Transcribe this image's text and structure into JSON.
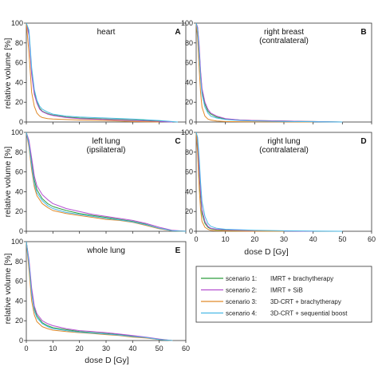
{
  "chart_data": {
    "type": "line",
    "ylabel": "relative volume [%]",
    "xlabel": "dose D [Gy]",
    "xlim": [
      0,
      60
    ],
    "ylim": [
      0,
      100
    ],
    "xticks": [
      0,
      10,
      20,
      30,
      40,
      50,
      60
    ],
    "yticks": [
      0,
      20,
      40,
      60,
      80,
      100
    ],
    "legend": {
      "placement": "inside-bottom-right",
      "entries": [
        {
          "scenario": "scenario 1:",
          "label": "IMRT + brachytherapy",
          "color": "#2e9e3e"
        },
        {
          "scenario": "scenario 2:",
          "label": "IMRT + SiB",
          "color": "#b44fd0"
        },
        {
          "scenario": "scenario 3:",
          "label": "3D-CRT + brachytherapy",
          "color": "#e08a2a"
        },
        {
          "scenario": "scenario 4:",
          "label": "3D-CRT + sequential boost",
          "color": "#49b9e6"
        }
      ]
    },
    "panels": [
      {
        "id": "heart",
        "letter": "A",
        "title_lines": [
          "heart"
        ],
        "series": [
          {
            "name": "scenario 1",
            "x": [
              0,
              1,
              2,
              3,
              4,
              5,
              6,
              8,
              10,
              15,
              20,
              30,
              40,
              50,
              55
            ],
            "y": [
              100,
              90,
              50,
              30,
              20,
              14,
              11,
              8.5,
              7,
              5,
              4,
              3,
              2,
              1,
              0
            ]
          },
          {
            "name": "scenario 2",
            "x": [
              0,
              1,
              2,
              3,
              4,
              5,
              6,
              8,
              10,
              15,
              20,
              30,
              40,
              50,
              55
            ],
            "y": [
              100,
              88,
              48,
              28,
              19,
              13,
              10.5,
              8,
              6.5,
              4.5,
              3.5,
              2.5,
              1.5,
              0.5,
              0
            ]
          },
          {
            "name": "scenario 3",
            "x": [
              0,
              1,
              2,
              3,
              4,
              5,
              6,
              8,
              10,
              15,
              20,
              30,
              40,
              50
            ],
            "y": [
              100,
              70,
              30,
              16,
              9,
              6,
              4.5,
              3.5,
              3,
              2.5,
              2,
              1.5,
              0.5,
              0
            ]
          },
          {
            "name": "scenario 4",
            "x": [
              0,
              1,
              2,
              3,
              4,
              5,
              6,
              8,
              10,
              15,
              20,
              30,
              40,
              50,
              57
            ],
            "y": [
              100,
              93,
              55,
              33,
              22,
              16,
              13,
              10,
              8,
              6,
              5,
              4,
              3,
              1.5,
              0
            ]
          }
        ]
      },
      {
        "id": "right-breast",
        "letter": "B",
        "title_lines": [
          "right breast",
          "(contralateral)"
        ],
        "series": [
          {
            "name": "scenario 1",
            "x": [
              0,
              0.5,
              1,
              1.5,
              2,
              3,
              4,
              5,
              7,
              10,
              15,
              20,
              30,
              40,
              50
            ],
            "y": [
              100,
              95,
              75,
              50,
              32,
              18,
              11,
              8,
              5,
              3,
              2,
              1.5,
              1,
              0.5,
              0
            ]
          },
          {
            "name": "scenario 2",
            "x": [
              0,
              0.5,
              1,
              1.5,
              2,
              3,
              4,
              5,
              7,
              10,
              15,
              20,
              30,
              40,
              50
            ],
            "y": [
              100,
              96,
              78,
              52,
              34,
              20,
              13,
              9,
              6,
              3.5,
              2,
              1.5,
              1,
              0.5,
              0
            ]
          },
          {
            "name": "scenario 3",
            "x": [
              0,
              0.5,
              1,
              1.5,
              2,
              3,
              4,
              5,
              7,
              10,
              15,
              20,
              30,
              40
            ],
            "y": [
              100,
              85,
              55,
              30,
              15,
              6,
              3,
              2,
              1,
              0.5,
              0.3,
              0.2,
              0.1,
              0
            ]
          },
          {
            "name": "scenario 4",
            "x": [
              0,
              0.5,
              1,
              1.5,
              2,
              3,
              4,
              5,
              7,
              10,
              15,
              20,
              30,
              40,
              50
            ],
            "y": [
              100,
              93,
              70,
              45,
              28,
              15,
              9,
              6,
              4,
              2.5,
              1.5,
              1,
              0.5,
              0.3,
              0
            ]
          }
        ]
      },
      {
        "id": "left-lung",
        "letter": "C",
        "title_lines": [
          "left lung",
          "(ipsilateral)"
        ],
        "series": [
          {
            "name": "scenario 1",
            "x": [
              0,
              1,
              2,
              3,
              4,
              6,
              8,
              10,
              15,
              20,
              25,
              30,
              35,
              40,
              45,
              50,
              55,
              60
            ],
            "y": [
              100,
              90,
              70,
              52,
              42,
              33,
              28,
              25,
              21,
              18,
              16,
              14,
              12,
              10,
              7,
              3,
              0.5,
              0
            ]
          },
          {
            "name": "scenario 2",
            "x": [
              0,
              1,
              2,
              3,
              4,
              6,
              8,
              10,
              15,
              20,
              25,
              30,
              35,
              40,
              45,
              50,
              55,
              60
            ],
            "y": [
              100,
              92,
              74,
              56,
              46,
              37,
              32,
              28,
              23,
              20,
              17,
              15,
              13,
              11,
              8,
              4,
              1,
              0
            ]
          },
          {
            "name": "scenario 3",
            "x": [
              0,
              1,
              2,
              3,
              4,
              6,
              8,
              10,
              15,
              20,
              25,
              30,
              35,
              40,
              45,
              50,
              55,
              60
            ],
            "y": [
              100,
              85,
              62,
              45,
              36,
              28,
              24,
              21,
              18,
              16,
              14,
              12,
              11,
              9,
              6,
              2.5,
              0.5,
              0
            ]
          },
          {
            "name": "scenario 4",
            "x": [
              0,
              1,
              2,
              3,
              4,
              6,
              8,
              10,
              15,
              20,
              25,
              30,
              35,
              40,
              45,
              50,
              55,
              60
            ],
            "y": [
              100,
              88,
              66,
              48,
              39,
              31,
              26,
              23,
              19,
              17,
              15,
              13,
              11.5,
              9.5,
              6.5,
              3,
              0.5,
              0
            ]
          }
        ]
      },
      {
        "id": "right-lung",
        "letter": "D",
        "title_lines": [
          "right lung",
          "(contralateral)"
        ],
        "series": [
          {
            "name": "scenario 1",
            "x": [
              0,
              0.5,
              1,
              1.5,
              2,
              3,
              4,
              5,
              7,
              10,
              15,
              20,
              30,
              40
            ],
            "y": [
              100,
              90,
              60,
              35,
              18,
              8,
              4,
              2.5,
              1.5,
              1,
              0.5,
              0.3,
              0.1,
              0
            ]
          },
          {
            "name": "scenario 2",
            "x": [
              0,
              0.5,
              1,
              1.5,
              2,
              3,
              4,
              5,
              7,
              10,
              15,
              20,
              30,
              40
            ],
            "y": [
              100,
              92,
              65,
              40,
              22,
              10,
              5,
              3,
              2,
              1.5,
              1,
              0.5,
              0.2,
              0
            ]
          },
          {
            "name": "scenario 3",
            "x": [
              0,
              0.5,
              1,
              1.5,
              2,
              3,
              4,
              5,
              7,
              10,
              15,
              20,
              30
            ],
            "y": [
              100,
              80,
              45,
              22,
              10,
              4,
              2,
              1,
              0.5,
              0.3,
              0.2,
              0.1,
              0
            ]
          },
          {
            "name": "scenario 4",
            "x": [
              0,
              0.5,
              1,
              1.5,
              2,
              3,
              4,
              5,
              7,
              10,
              15,
              20,
              30,
              40,
              50
            ],
            "y": [
              100,
              95,
              75,
              50,
              30,
              15,
              8,
              5,
              3,
              2,
              1.5,
              1,
              0.5,
              0.2,
              0
            ]
          }
        ]
      },
      {
        "id": "whole-lung",
        "letter": "E",
        "title_lines": [
          "whole lung"
        ],
        "series": [
          {
            "name": "scenario 1",
            "x": [
              0,
              1,
              2,
              3,
              4,
              6,
              8,
              10,
              15,
              20,
              25,
              30,
              35,
              40,
              45,
              50,
              55
            ],
            "y": [
              100,
              80,
              50,
              33,
              25,
              18,
              15,
              13,
              11,
              9,
              8,
              7,
              6,
              4.5,
              3,
              1,
              0
            ]
          },
          {
            "name": "scenario 2",
            "x": [
              0,
              1,
              2,
              3,
              4,
              6,
              8,
              10,
              15,
              20,
              25,
              30,
              35,
              40,
              45,
              50,
              55
            ],
            "y": [
              100,
              82,
              53,
              35,
              27,
              20,
              17,
              15,
              12,
              10,
              9,
              8,
              6.5,
              5,
              3.5,
              1.5,
              0
            ]
          },
          {
            "name": "scenario 3",
            "x": [
              0,
              1,
              2,
              3,
              4,
              6,
              8,
              10,
              15,
              20,
              25,
              30,
              35,
              40,
              45,
              50,
              55
            ],
            "y": [
              100,
              72,
              40,
              26,
              19,
              14,
              12,
              10.5,
              9,
              8,
              7,
              6,
              5,
              3.5,
              2.5,
              1,
              0
            ]
          },
          {
            "name": "scenario 4",
            "x": [
              0,
              1,
              2,
              3,
              4,
              6,
              8,
              10,
              15,
              20,
              25,
              30,
              35,
              40,
              45,
              50,
              55
            ],
            "y": [
              100,
              78,
              47,
              30,
              23,
              17,
              14,
              12,
              10,
              8.5,
              7.5,
              6.5,
              5.5,
              4,
              3,
              1,
              0
            ]
          }
        ]
      }
    ]
  }
}
